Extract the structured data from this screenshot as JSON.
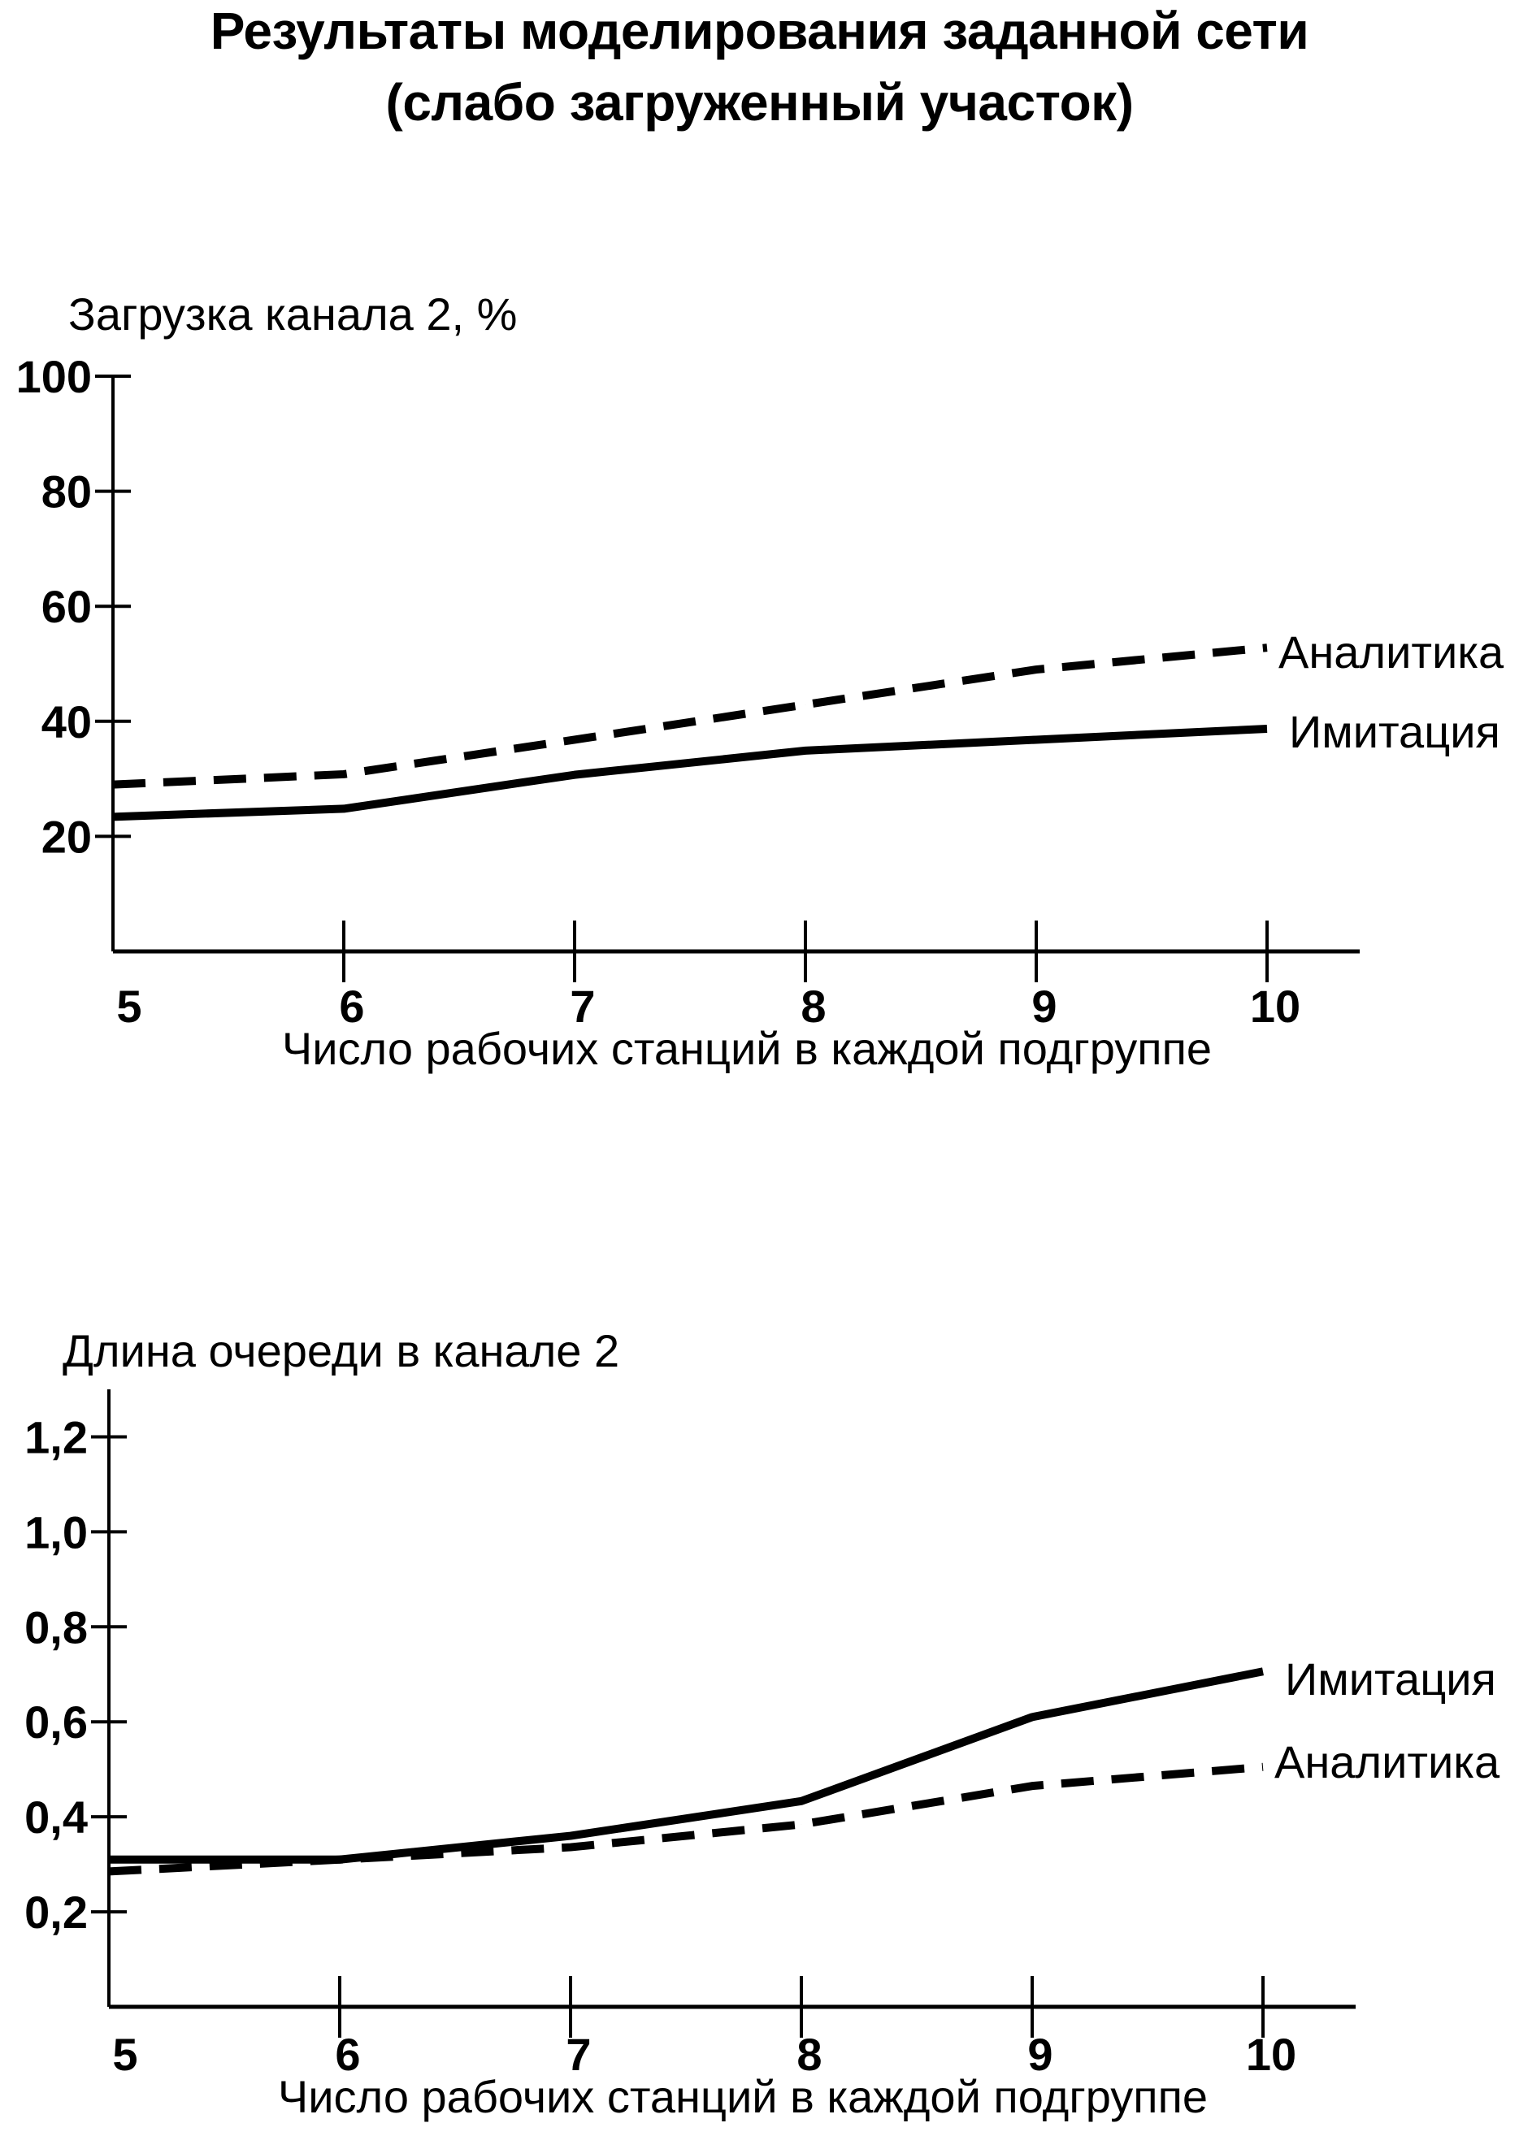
{
  "title_line1": "Результаты моделирования заданной сети",
  "title_line2": "(слабо загруженный участок)",
  "chart_data": [
    {
      "type": "line",
      "title": "",
      "ylabel": "Загрузка канала 2, %",
      "xlabel": "Число рабочих станций в каждой подгруппе",
      "x": [
        5,
        6,
        7,
        8,
        9,
        10
      ],
      "xticks": [
        "5",
        "6",
        "7",
        "8",
        "9",
        "10"
      ],
      "yticks": [
        20,
        40,
        60,
        80,
        100
      ],
      "ytick_labels": [
        "20",
        "40",
        "60",
        "80",
        "100"
      ],
      "ylim": [
        0,
        100
      ],
      "grid": false,
      "series": [
        {
          "name": "Аналитика",
          "style": "dashed",
          "values": [
            29,
            30.8,
            36.8,
            42.9,
            49.0,
            52.8
          ]
        },
        {
          "name": "Имитация",
          "style": "solid",
          "values": [
            23.4,
            24.8,
            30.7,
            34.9,
            36.8,
            38.7
          ]
        }
      ]
    },
    {
      "type": "line",
      "title": "",
      "ylabel": "Длина очереди в канале 2",
      "xlabel": "Число рабочих станций в каждой подгруппе",
      "x": [
        5,
        6,
        7,
        8,
        9,
        10
      ],
      "xticks": [
        "5",
        "6",
        "7",
        "8",
        "9",
        "10"
      ],
      "yticks": [
        0.2,
        0.4,
        0.6,
        0.8,
        1.0,
        1.2
      ],
      "ytick_labels": [
        "0,2",
        "0,4",
        "0,6",
        "0,8",
        "1,0",
        "1,2"
      ],
      "ylim": [
        0,
        1.3
      ],
      "grid": false,
      "series": [
        {
          "name": "Имитация",
          "style": "solid",
          "values": [
            0.31,
            0.31,
            0.36,
            0.433,
            0.61,
            0.706
          ]
        },
        {
          "name": "Аналитика",
          "style": "dashed",
          "values": [
            0.285,
            0.31,
            0.336,
            0.384,
            0.465,
            0.505
          ]
        }
      ]
    }
  ]
}
